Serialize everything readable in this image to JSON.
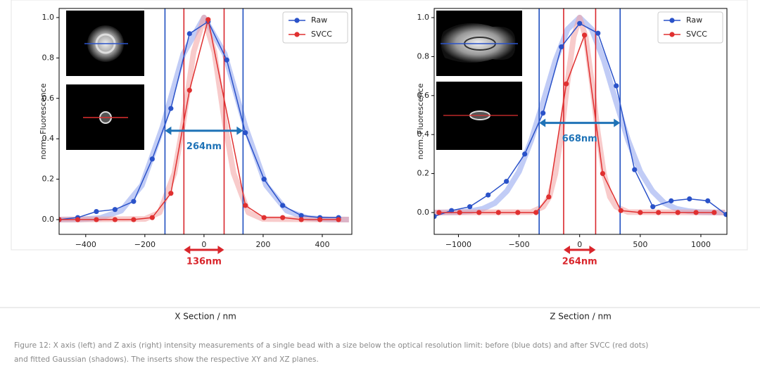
{
  "chart_data": [
    {
      "type": "line",
      "y_label": "norm. Fluorescence",
      "x_label": "X Section / nm",
      "xlim": [
        -490,
        500
      ],
      "ylim": [
        -0.073,
        1.045
      ],
      "xticks": [
        {
          "value": -400,
          "label": "−400"
        },
        {
          "value": -200,
          "label": "−200"
        },
        0,
        200,
        400
      ],
      "yticks": [
        {
          "value": 0,
          "label": "0.0"
        },
        0.2,
        0.4,
        0.6,
        0.8,
        {
          "value": 1,
          "label": "1.0"
        }
      ],
      "legend": "upper right",
      "series": [
        {
          "name": "Raw",
          "color": "#2a52c9",
          "x": [
            -490,
            -427,
            -364,
            -301,
            -238,
            -175,
            -112,
            -49,
            14,
            77,
            140,
            203,
            266,
            329,
            392,
            455
          ],
          "values": [
            0.0,
            0.01,
            0.04,
            0.05,
            0.09,
            0.3,
            0.55,
            0.92,
            0.98,
            0.79,
            0.43,
            0.2,
            0.07,
            0.02,
            0.01,
            0.01
          ]
        },
        {
          "name": "SVCC",
          "color": "#e03030",
          "x": [
            -490,
            -427,
            -364,
            -301,
            -238,
            -175,
            -112,
            -49,
            14,
            140,
            203,
            266,
            329,
            392,
            455
          ],
          "values": [
            0.0,
            0.0,
            0.0,
            0.0,
            0.0,
            0.01,
            0.13,
            0.64,
            0.99,
            0.07,
            0.01,
            0.01,
            0.0,
            0.0,
            0.0
          ]
        }
      ],
      "fits": [
        {
          "color": "#8ea2ee",
          "x": [
            -490,
            -420,
            -350,
            -280,
            -210,
            -140,
            -70,
            0,
            70,
            140,
            210,
            280,
            350,
            420,
            490
          ],
          "values": [
            0.0,
            0.001,
            0.008,
            0.044,
            0.17,
            0.46,
            0.82,
            1.0,
            0.82,
            0.46,
            0.17,
            0.044,
            0.008,
            0.001,
            0.0
          ]
        },
        {
          "color": "#f2a0a0",
          "x": [
            -490,
            -200,
            -150,
            -100,
            -70,
            -35,
            0,
            35,
            70,
            100,
            150,
            200,
            490
          ],
          "values": [
            0.0,
            0.003,
            0.035,
            0.23,
            0.48,
            0.83,
            1.0,
            0.83,
            0.48,
            0.23,
            0.035,
            0.003,
            0.0
          ]
        }
      ],
      "fwhm": [
        {
          "label": "264nm",
          "value": 264,
          "color": "#1f73b7"
        },
        {
          "label": "136nm",
          "value": 136,
          "color": "#d9262c"
        }
      ]
    },
    {
      "type": "line",
      "y_label": "norm. Fluorescence",
      "x_label": "Z Section / nm",
      "xlim": [
        -1200,
        1215
      ],
      "ylim": [
        -0.112,
        1.047
      ],
      "xticks": [
        {
          "value": -1000,
          "label": "−1000"
        },
        {
          "value": -500,
          "label": "−500"
        },
        0,
        500,
        1000
      ],
      "yticks": [
        {
          "value": 0,
          "label": "0.0"
        },
        0.2,
        0.4,
        0.6,
        0.8,
        {
          "value": 1,
          "label": "1.0"
        }
      ],
      "legend": "upper right",
      "series": [
        {
          "name": "Raw",
          "color": "#2a52c9",
          "x": [
            -1200,
            -1057,
            -906,
            -755,
            -604,
            -453,
            -302,
            -151,
            0,
            151,
            302,
            453,
            604,
            755,
            906,
            1057,
            1208
          ],
          "values": [
            -0.02,
            0.01,
            0.03,
            0.09,
            0.16,
            0.3,
            0.51,
            0.85,
            0.97,
            0.92,
            0.65,
            0.22,
            0.03,
            0.06,
            0.07,
            0.06,
            -0.01
          ]
        },
        {
          "name": "SVCC",
          "color": "#e03030",
          "x": [
            -1160,
            -990,
            -830,
            -670,
            -510,
            -360,
            -255,
            -110,
            40,
            190,
            340,
            500,
            650,
            810,
            960,
            1110
          ],
          "values": [
            0.0,
            0.0,
            0.0,
            0.0,
            0.0,
            0.0,
            0.08,
            0.66,
            0.91,
            0.2,
            0.01,
            0.0,
            0.0,
            0.0,
            0.0,
            0.0
          ]
        }
      ],
      "fits": [
        {
          "color": "#8ea2ee",
          "x": [
            -1200,
            -1100,
            -1000,
            -900,
            -800,
            -700,
            -600,
            -500,
            -400,
            -300,
            -200,
            -100,
            0,
            100,
            200,
            300,
            400,
            500,
            600,
            700,
            800,
            900,
            1000,
            1100,
            1200
          ],
          "values": [
            0.0,
            0.001,
            0.002,
            0.007,
            0.019,
            0.048,
            0.11,
            0.21,
            0.37,
            0.57,
            0.78,
            0.94,
            1.0,
            0.94,
            0.78,
            0.57,
            0.37,
            0.21,
            0.11,
            0.048,
            0.019,
            0.007,
            0.002,
            0.001,
            0.0
          ]
        },
        {
          "color": "#f2a0a0",
          "x": [
            -1200,
            -400,
            -300,
            -250,
            -200,
            -150,
            -100,
            -50,
            0,
            50,
            100,
            150,
            200,
            250,
            300,
            400,
            1200
          ],
          "values": [
            0.0,
            0.002,
            0.03,
            0.08,
            0.2,
            0.41,
            0.67,
            0.9,
            1.0,
            0.9,
            0.67,
            0.41,
            0.2,
            0.08,
            0.03,
            0.002,
            0.0
          ]
        }
      ],
      "fwhm": [
        {
          "label": "668nm",
          "value": 668,
          "color": "#1f73b7"
        },
        {
          "label": "264nm",
          "value": 264,
          "color": "#d9262c"
        }
      ]
    }
  ],
  "caption": [
    "Figure 12: X axis (left) and Z axis (right) intensity measurements of a single bead with a size below the optical resolution limit: before (blue dots) and after SVCC (red dots)",
    "and fitted Gaussian (shadows). The inserts show the respective XY and XZ planes."
  ]
}
